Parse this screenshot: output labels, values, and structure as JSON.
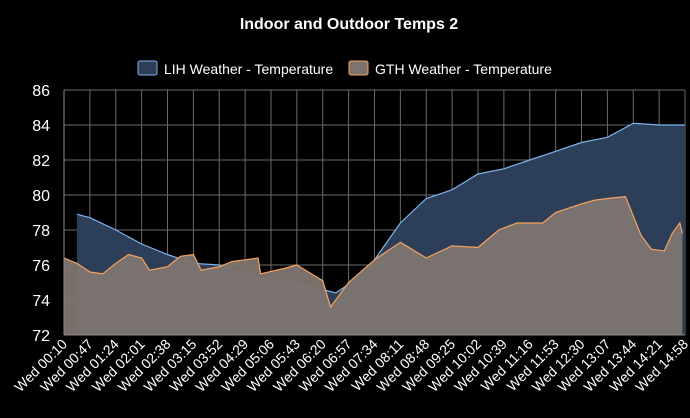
{
  "chart_data": {
    "type": "area",
    "title": "Indoor and Outdoor Temps 2",
    "xlabel": "",
    "ylabel": "",
    "ylim": [
      72,
      86
    ],
    "yticks": [
      72,
      74,
      76,
      78,
      80,
      82,
      84,
      86
    ],
    "grid": true,
    "legend_position": "top-center",
    "categories": [
      "Wed 00:10",
      "Wed 00:47",
      "Wed 01:24",
      "Wed 02:01",
      "Wed 02:38",
      "Wed 03:15",
      "Wed 03:52",
      "Wed 04:29",
      "Wed 05:06",
      "Wed 05:43",
      "Wed 06:20",
      "Wed 06:57",
      "Wed 07:34",
      "Wed 08:11",
      "Wed 08:48",
      "Wed 09:25",
      "Wed 10:02",
      "Wed 10:39",
      "Wed 11:16",
      "Wed 11:53",
      "Wed 12:30",
      "Wed 13:07",
      "Wed 13:44",
      "Wed 14:21",
      "Wed 14:58"
    ],
    "series": [
      {
        "name": "LIH Weather - Temperature",
        "color": "#7cb5ec",
        "fill": "#2c3e58",
        "points": [
          [
            0.5,
            72
          ],
          [
            0.5,
            78.9
          ],
          [
            1.0,
            78.7
          ],
          [
            2.0,
            78.0
          ],
          [
            3.0,
            77.2
          ],
          [
            4.0,
            76.6
          ],
          [
            5.0,
            76.1
          ],
          [
            6.0,
            76.0
          ],
          [
            7.0,
            75.5
          ],
          [
            8.0,
            75.1
          ],
          [
            9.0,
            74.9
          ],
          [
            10.0,
            74.6
          ],
          [
            10.5,
            74.4
          ],
          [
            11.0,
            74.9
          ],
          [
            12.0,
            76.3
          ],
          [
            13.0,
            78.4
          ],
          [
            14.0,
            79.8
          ],
          [
            15.0,
            80.3
          ],
          [
            16.0,
            81.2
          ],
          [
            17.0,
            81.5
          ],
          [
            18.0,
            82.0
          ],
          [
            19.0,
            82.5
          ],
          [
            20.0,
            83.0
          ],
          [
            21.0,
            83.3
          ],
          [
            22.0,
            84.1
          ],
          [
            23.0,
            84.0
          ],
          [
            24.0,
            84.0
          ],
          [
            24.0,
            72
          ]
        ]
      },
      {
        "name": "GTH Weather - Temperature",
        "color": "#f7a35c",
        "fill": "#7d7470",
        "points": [
          [
            0.0,
            72
          ],
          [
            0.0,
            76.4
          ],
          [
            0.5,
            76.1
          ],
          [
            1.0,
            75.6
          ],
          [
            1.5,
            75.5
          ],
          [
            2.0,
            76.1
          ],
          [
            2.5,
            76.6
          ],
          [
            3.0,
            76.4
          ],
          [
            3.3,
            75.7
          ],
          [
            4.0,
            75.9
          ],
          [
            4.5,
            76.5
          ],
          [
            5.0,
            76.6
          ],
          [
            5.3,
            75.7
          ],
          [
            6.0,
            75.9
          ],
          [
            6.5,
            76.2
          ],
          [
            7.0,
            76.3
          ],
          [
            7.5,
            76.4
          ],
          [
            7.6,
            75.5
          ],
          [
            8.5,
            75.8
          ],
          [
            9.0,
            76.0
          ],
          [
            10.0,
            75.1
          ],
          [
            10.3,
            73.6
          ],
          [
            11.0,
            75.0
          ],
          [
            12.0,
            76.3
          ],
          [
            13.0,
            77.3
          ],
          [
            14.0,
            76.4
          ],
          [
            15.0,
            77.1
          ],
          [
            16.0,
            77.0
          ],
          [
            16.8,
            78.0
          ],
          [
            17.5,
            78.4
          ],
          [
            18.5,
            78.4
          ],
          [
            19.0,
            79.0
          ],
          [
            20.0,
            79.5
          ],
          [
            20.5,
            79.7
          ],
          [
            21.0,
            79.8
          ],
          [
            21.7,
            79.9
          ],
          [
            22.3,
            77.7
          ],
          [
            22.7,
            76.9
          ],
          [
            23.2,
            76.8
          ],
          [
            23.5,
            77.8
          ],
          [
            23.8,
            78.4
          ],
          [
            23.9,
            77.8
          ],
          [
            23.9,
            72
          ]
        ]
      }
    ]
  }
}
